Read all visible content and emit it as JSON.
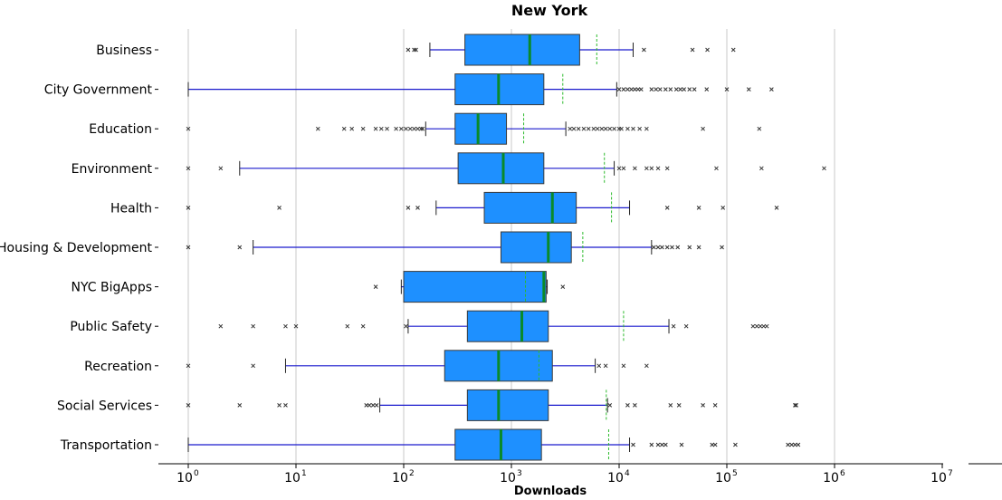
{
  "chart_data": {
    "type": "box",
    "title": "New York",
    "xlabel": "Downloads",
    "ylabel": "",
    "xscale": "log",
    "xlim": [
      0.55,
      10000000
    ],
    "grid": "vertical",
    "xticks": [
      {
        "base": "10",
        "exp": "0",
        "value": 1
      },
      {
        "base": "10",
        "exp": "1",
        "value": 10
      },
      {
        "base": "10",
        "exp": "2",
        "value": 100
      },
      {
        "base": "10",
        "exp": "3",
        "value": 1000
      },
      {
        "base": "10",
        "exp": "4",
        "value": 10000
      },
      {
        "base": "10",
        "exp": "5",
        "value": 100000
      },
      {
        "base": "10",
        "exp": "6",
        "value": 1000000
      },
      {
        "base": "10",
        "exp": "7",
        "value": 10000000
      }
    ],
    "series": [
      {
        "category": "Business",
        "whisker_low": 175,
        "q1": 370,
        "median": 1480,
        "q3": 4300,
        "whisker_high": 13500,
        "mean": 6200,
        "outliers": [
          110,
          125,
          130,
          17000,
          48000,
          66000,
          115000
        ]
      },
      {
        "category": "City Government",
        "whisker_low": 1,
        "q1": 300,
        "median": 760,
        "q3": 2000,
        "whisker_high": 9500,
        "mean": 3000,
        "outliers": [
          10000,
          11000,
          12000,
          13000,
          14000,
          15000,
          16000,
          20000,
          22000,
          24000,
          27000,
          30000,
          34000,
          37000,
          40000,
          45000,
          50000,
          65000,
          100000,
          160000,
          260000
        ]
      },
      {
        "category": "Education",
        "whisker_low": 160,
        "q1": 300,
        "median": 490,
        "q3": 900,
        "whisker_high": 3200,
        "mean": 1300,
        "outliers": [
          1,
          16,
          28,
          33,
          42,
          55,
          62,
          70,
          85,
          95,
          105,
          115,
          125,
          135,
          145,
          150,
          3500,
          3800,
          4200,
          4700,
          5200,
          5800,
          6300,
          6900,
          7500,
          8200,
          9000,
          10000,
          10500,
          12000,
          13500,
          15500,
          18000,
          60000,
          200000
        ]
      },
      {
        "category": "Environment",
        "whisker_low": 3,
        "q1": 320,
        "median": 840,
        "q3": 2000,
        "whisker_high": 9000,
        "mean": 7300,
        "outliers": [
          1,
          2,
          10000,
          11000,
          14000,
          18000,
          20000,
          23000,
          28000,
          80000,
          210000,
          800000
        ]
      },
      {
        "category": "Health",
        "whisker_low": 200,
        "q1": 560,
        "median": 2400,
        "q3": 4000,
        "whisker_high": 12500,
        "mean": 8500,
        "outliers": [
          1,
          7,
          110,
          135,
          28000,
          55000,
          92000,
          290000
        ]
      },
      {
        "category": "Housing & Development",
        "whisker_low": 4,
        "q1": 800,
        "median": 2200,
        "q3": 3600,
        "whisker_high": 20000,
        "mean": 4600,
        "outliers": [
          1,
          3,
          21000,
          23000,
          25000,
          28000,
          31000,
          35000,
          45000,
          55000,
          90000
        ]
      },
      {
        "category": "NYC BigApps",
        "whisker_low": 95,
        "q1": 100,
        "median": 2000,
        "q3": 2100,
        "whisker_high": 2150,
        "mean": 1350,
        "outliers": [
          55,
          3000
        ]
      },
      {
        "category": "Public Safety",
        "whisker_low": 110,
        "q1": 390,
        "median": 1250,
        "q3": 2200,
        "whisker_high": 29000,
        "mean": 11000,
        "outliers": [
          2,
          4,
          8,
          10,
          30,
          42,
          105,
          32000,
          42000,
          175000,
          190000,
          205000,
          220000,
          235000
        ]
      },
      {
        "category": "Recreation",
        "whisker_low": 8,
        "q1": 240,
        "median": 760,
        "q3": 2400,
        "whisker_high": 6000,
        "mean": 1800,
        "outliers": [
          1,
          4,
          6500,
          7500,
          11000,
          18000
        ]
      },
      {
        "category": "Social Services",
        "whisker_low": 60,
        "q1": 390,
        "median": 760,
        "q3": 2200,
        "whisker_high": 7800,
        "mean": 7600,
        "outliers": [
          1,
          3,
          7,
          8,
          45,
          48,
          52,
          56,
          8200,
          12000,
          14000,
          30000,
          36000,
          60000,
          78000,
          430000,
          440000
        ]
      },
      {
        "category": "Transportation",
        "whisker_low": 1,
        "q1": 300,
        "median": 800,
        "q3": 1900,
        "whisker_high": 12500,
        "mean": 8000,
        "outliers": [
          13500,
          20000,
          23000,
          25000,
          27000,
          38000,
          73000,
          78000,
          120000,
          370000,
          400000,
          430000,
          460000
        ]
      }
    ]
  }
}
